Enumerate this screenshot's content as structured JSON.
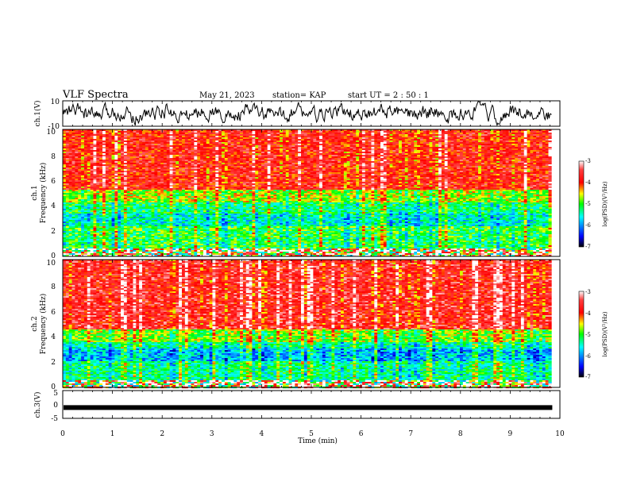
{
  "header": {
    "title": "VLF Spectra",
    "date": "May 21, 2023",
    "station": "station= KAP",
    "start": "start  UT =   2 : 50 : 1"
  },
  "chart_data": [
    {
      "type": "line",
      "name": "waveform-ch1",
      "ylabel": "ch.1(V)",
      "ylim": [
        -10,
        10
      ],
      "yticks": [
        "10",
        "-10"
      ],
      "xlim": [
        0,
        10
      ],
      "trace_color": "#000000"
    },
    {
      "type": "heatmap",
      "name": "spectrogram-ch1",
      "ylabel_line1": "ch.1",
      "ylabel_line2": "Frequency  (kHz)",
      "ylim": [
        0,
        10
      ],
      "yticks": [
        "0",
        "2",
        "4",
        "6",
        "8",
        "10"
      ],
      "xlim": [
        0,
        9.83
      ],
      "bands": [
        {
          "from": 0,
          "to": 0.6,
          "level": "mixed"
        },
        {
          "from": 0.6,
          "to": 2.0,
          "level": -5.1
        },
        {
          "from": 2.0,
          "to": 2.4,
          "level": -5.0
        },
        {
          "from": 2.4,
          "to": 3.4,
          "level": -5.5
        },
        {
          "from": 3.4,
          "to": 4.2,
          "level": -5.2
        },
        {
          "from": 4.2,
          "to": 5.2,
          "level": -4.7
        },
        {
          "from": 5.2,
          "to": 10,
          "level": -3.8
        }
      ],
      "colorbar": {
        "label": "log(PSD)(V²/Hz)",
        "ticks": [
          "-3",
          "-4",
          "-5",
          "-6",
          "-7"
        ],
        "range": [
          -7,
          -3
        ]
      }
    },
    {
      "type": "heatmap",
      "name": "spectrogram-ch2",
      "ylabel_line1": "ch.2",
      "ylabel_line2": "Frequency  (kHz)",
      "ylim": [
        0,
        10
      ],
      "yticks": [
        "0",
        "2",
        "4",
        "6",
        "8",
        "10"
      ],
      "xlim": [
        0,
        9.83
      ],
      "bands": [
        {
          "from": 0,
          "to": 0.6,
          "level": "mixed"
        },
        {
          "from": 0.6,
          "to": 2.0,
          "level": -5.3
        },
        {
          "from": 2.0,
          "to": 3.0,
          "level": -5.8
        },
        {
          "from": 3.0,
          "to": 3.6,
          "level": -5.4
        },
        {
          "from": 3.6,
          "to": 4.5,
          "level": -4.8
        },
        {
          "from": 4.5,
          "to": 10,
          "level": -3.7
        }
      ],
      "colorbar": {
        "label": "log(PSD)(V²/Hz)",
        "ticks": [
          "-3",
          "-4",
          "-5",
          "-6",
          "-7"
        ],
        "range": [
          -7,
          -3
        ]
      }
    },
    {
      "type": "line",
      "name": "waveform-ch3",
      "ylabel": "ch.3(V)",
      "ylim": [
        -5,
        5
      ],
      "yticks": [
        "5",
        "0",
        "-5"
      ],
      "xlim": [
        0,
        10
      ],
      "level": -1.1,
      "trace_color": "#000000"
    }
  ],
  "xaxis": {
    "label": "Time  (min)",
    "ticks": [
      "0",
      "1",
      "2",
      "3",
      "4",
      "5",
      "6",
      "7",
      "8",
      "9",
      "10"
    ]
  },
  "colors": {
    "colormap": [
      "#000000",
      "#0000ff",
      "#00ffff",
      "#00ff00",
      "#ffff00",
      "#ff0000",
      "#ffffff"
    ]
  }
}
